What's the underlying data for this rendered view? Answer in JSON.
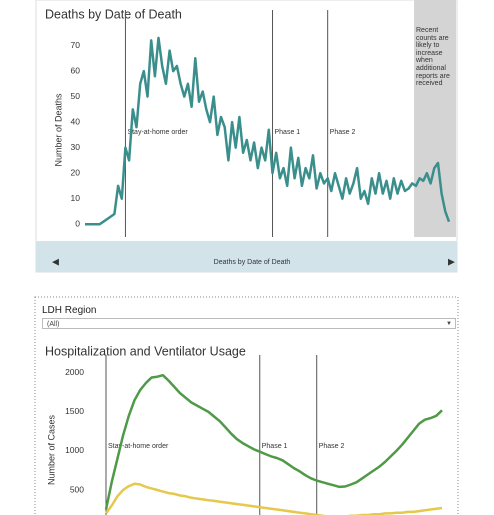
{
  "chart_data": [
    {
      "type": "line",
      "title": "Deaths by Date of Death",
      "y_label": "Number of Deaths",
      "ylim": [
        -5,
        80
      ],
      "yticks": [
        0,
        10,
        20,
        30,
        40,
        50,
        60,
        70
      ],
      "color": "#3a8f8c",
      "values": [
        0,
        0,
        0,
        0,
        0,
        1,
        2,
        3,
        4,
        15,
        10,
        30,
        25,
        45,
        38,
        55,
        60,
        50,
        72,
        58,
        73,
        62,
        55,
        68,
        60,
        62,
        55,
        50,
        55,
        46,
        65,
        48,
        52,
        45,
        40,
        50,
        35,
        42,
        38,
        25,
        40,
        30,
        42,
        28,
        33,
        25,
        32,
        22,
        30,
        25,
        37,
        20,
        28,
        18,
        22,
        15,
        30,
        18,
        26,
        15,
        22,
        18,
        27,
        14,
        20,
        16,
        18,
        13,
        20,
        15,
        10,
        18,
        12,
        16,
        22,
        10,
        13,
        8,
        18,
        12,
        20,
        12,
        17,
        10,
        18,
        12,
        17,
        13,
        14,
        16,
        15,
        18,
        17,
        20,
        16,
        22,
        24,
        12,
        5,
        1
      ],
      "annotations": [
        {
          "label": "Stay-at-home order",
          "x": 11
        },
        {
          "label": "Phase 1",
          "x": 51
        },
        {
          "label": "Phase 2",
          "x": 66
        }
      ],
      "shaded": {
        "x_start": 89.5,
        "label": "Recent counts are likely to increase when additional reports are received"
      },
      "scrollbar_label": "Deaths by Date of Death"
    },
    {
      "type": "line",
      "title": "Hospitalization and Ventilator Usage",
      "y_label": "Number of Cases",
      "ylim": [
        180,
        2100
      ],
      "yticks": [
        500,
        1000,
        1500,
        2000
      ],
      "series": [
        {
          "color": "#4e9a47",
          "values": [
            250,
            600,
            900,
            1200,
            1450,
            1650,
            1780,
            1870,
            1940,
            1950,
            1970,
            1900,
            1820,
            1740,
            1680,
            1620,
            1580,
            1540,
            1500,
            1440,
            1380,
            1300,
            1220,
            1150,
            1100,
            1060,
            1020,
            990,
            960,
            930,
            910,
            880,
            830,
            780,
            740,
            690,
            650,
            620,
            600,
            580,
            560,
            540,
            545,
            570,
            600,
            650,
            700,
            750,
            800,
            860,
            930,
            1000,
            1080,
            1170,
            1260,
            1350,
            1400,
            1420,
            1450,
            1520
          ]
        },
        {
          "color": "#e6c84c",
          "values": [
            200,
            300,
            420,
            500,
            550,
            580,
            570,
            540,
            520,
            500,
            480,
            460,
            450,
            430,
            420,
            400,
            390,
            380,
            370,
            360,
            350,
            340,
            330,
            320,
            310,
            300,
            290,
            280,
            270,
            260,
            250,
            240,
            230,
            220,
            210,
            200,
            190,
            180,
            170,
            160,
            160,
            160,
            160,
            170,
            170,
            180,
            180,
            190,
            190,
            200,
            200,
            210,
            210,
            220,
            220,
            230,
            240,
            250,
            260,
            270
          ]
        }
      ],
      "annotations": [
        {
          "label": "Stay-at-home order",
          "x": 0
        },
        {
          "label": "Phase 1",
          "x": 27
        },
        {
          "label": "Phase 2",
          "x": 37
        }
      ]
    }
  ],
  "filter": {
    "label": "LDH Region",
    "value": "(All)"
  }
}
